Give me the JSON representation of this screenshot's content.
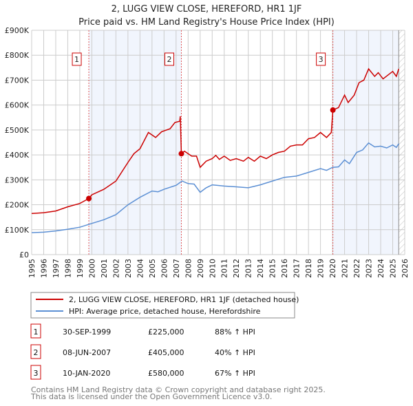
{
  "chart_data": {
    "type": "line",
    "title": "2, LUGG VIEW CLOSE, HEREFORD, HR1 1JF",
    "subtitle": "Price paid vs. HM Land Registry's House Price Index (HPI)",
    "xlim": [
      1995,
      2026
    ],
    "ylim": [
      0,
      900000
    ],
    "yticks": [
      {
        "v": 0,
        "label": "£0"
      },
      {
        "v": 100000,
        "label": "£100K"
      },
      {
        "v": 200000,
        "label": "£200K"
      },
      {
        "v": 300000,
        "label": "£300K"
      },
      {
        "v": 400000,
        "label": "£400K"
      },
      {
        "v": 500000,
        "label": "£500K"
      },
      {
        "v": 600000,
        "label": "£600K"
      },
      {
        "v": 700000,
        "label": "£700K"
      },
      {
        "v": 800000,
        "label": "£800K"
      },
      {
        "v": 900000,
        "label": "£900K"
      }
    ],
    "xticks": [
      "1995",
      "1996",
      "1997",
      "1998",
      "1999",
      "2000",
      "2001",
      "2002",
      "2003",
      "2004",
      "2005",
      "2006",
      "2007",
      "2008",
      "2009",
      "2010",
      "2011",
      "2012",
      "2013",
      "2014",
      "2015",
      "2016",
      "2017",
      "2018",
      "2019",
      "2020",
      "2021",
      "2022",
      "2023",
      "2024",
      "2025",
      "2026"
    ],
    "grid": true,
    "series": [
      {
        "name": "2, LUGG VIEW CLOSE, HEREFORD, HR1 1JF (detached house)",
        "color": "#cc0000",
        "x": [
          1995,
          1996,
          1997,
          1998,
          1999,
          1999.75,
          2000,
          2001,
          2002,
          2003,
          2003.5,
          2004,
          2004.7,
          2005.3,
          2005.8,
          2006.5,
          2006.9,
          2007.3,
          2007.35,
          2007.44,
          2007.7,
          2008.3,
          2008.7,
          2009,
          2009.5,
          2010,
          2010.3,
          2010.6,
          2011,
          2011.5,
          2012,
          2012.6,
          2013,
          2013.5,
          2014,
          2014.5,
          2015,
          2015.5,
          2016,
          2016.5,
          2017,
          2017.5,
          2018,
          2018.5,
          2019,
          2019.5,
          2019.9,
          2020.03,
          2020.5,
          2021,
          2021.3,
          2021.8,
          2022.2,
          2022.6,
          2023,
          2023.5,
          2023.8,
          2024.2,
          2024.6,
          2025,
          2025.3,
          2025.5
        ],
        "y": [
          165,
          168,
          175,
          192,
          205,
          225,
          240,
          262,
          295,
          370,
          405,
          425,
          490,
          470,
          493,
          505,
          530,
          535,
          555,
          405,
          415,
          395,
          395,
          350,
          375,
          385,
          398,
          382,
          395,
          378,
          385,
          375,
          390,
          375,
          395,
          385,
          400,
          410,
          415,
          435,
          440,
          440,
          465,
          470,
          490,
          470,
          490,
          580,
          590,
          640,
          610,
          640,
          690,
          700,
          745,
          715,
          730,
          705,
          720,
          735,
          715,
          745
        ]
      },
      {
        "name": "HPI: Average price, detached house, Herefordshire",
        "color": "#5b8fd4",
        "x": [
          1995,
          1996,
          1997,
          1998,
          1999,
          2000,
          2001,
          2002,
          2003,
          2004,
          2005,
          2005.5,
          2006,
          2007,
          2007.5,
          2008,
          2008.5,
          2009,
          2009.5,
          2010,
          2011,
          2012,
          2013,
          2014,
          2015,
          2016,
          2017,
          2018,
          2019,
          2019.5,
          2020,
          2020.5,
          2021,
          2021.4,
          2022,
          2022.5,
          2023,
          2023.5,
          2024,
          2024.5,
          2025,
          2025.3,
          2025.5
        ],
        "y": [
          88,
          90,
          95,
          102,
          110,
          125,
          140,
          160,
          200,
          230,
          255,
          252,
          262,
          278,
          295,
          285,
          283,
          250,
          268,
          280,
          275,
          272,
          268,
          280,
          295,
          310,
          315,
          330,
          345,
          338,
          350,
          352,
          380,
          365,
          410,
          420,
          448,
          432,
          435,
          428,
          440,
          430,
          445
        ]
      }
    ],
    "y_units": "thousands GBP",
    "sales": [
      {
        "label": "1",
        "x": 1999.75,
        "value": 225000,
        "date": "30-SEP-1999",
        "price": "£225,000",
        "hpi": "88% ↑ HPI"
      },
      {
        "label": "2",
        "x": 2007.44,
        "value": 405000,
        "date": "08-JUN-2007",
        "price": "£405,000",
        "hpi": "40% ↑ HPI"
      },
      {
        "label": "3",
        "x": 2020.03,
        "value": 580000,
        "date": "10-JAN-2020",
        "price": "£580,000",
        "hpi": "67% ↑ HPI"
      }
    ],
    "legend_position": "below"
  },
  "footer": [
    "Contains HM Land Registry data © Crown copyright and database right 2025.",
    "This data is licensed under the Open Government Licence v3.0."
  ]
}
